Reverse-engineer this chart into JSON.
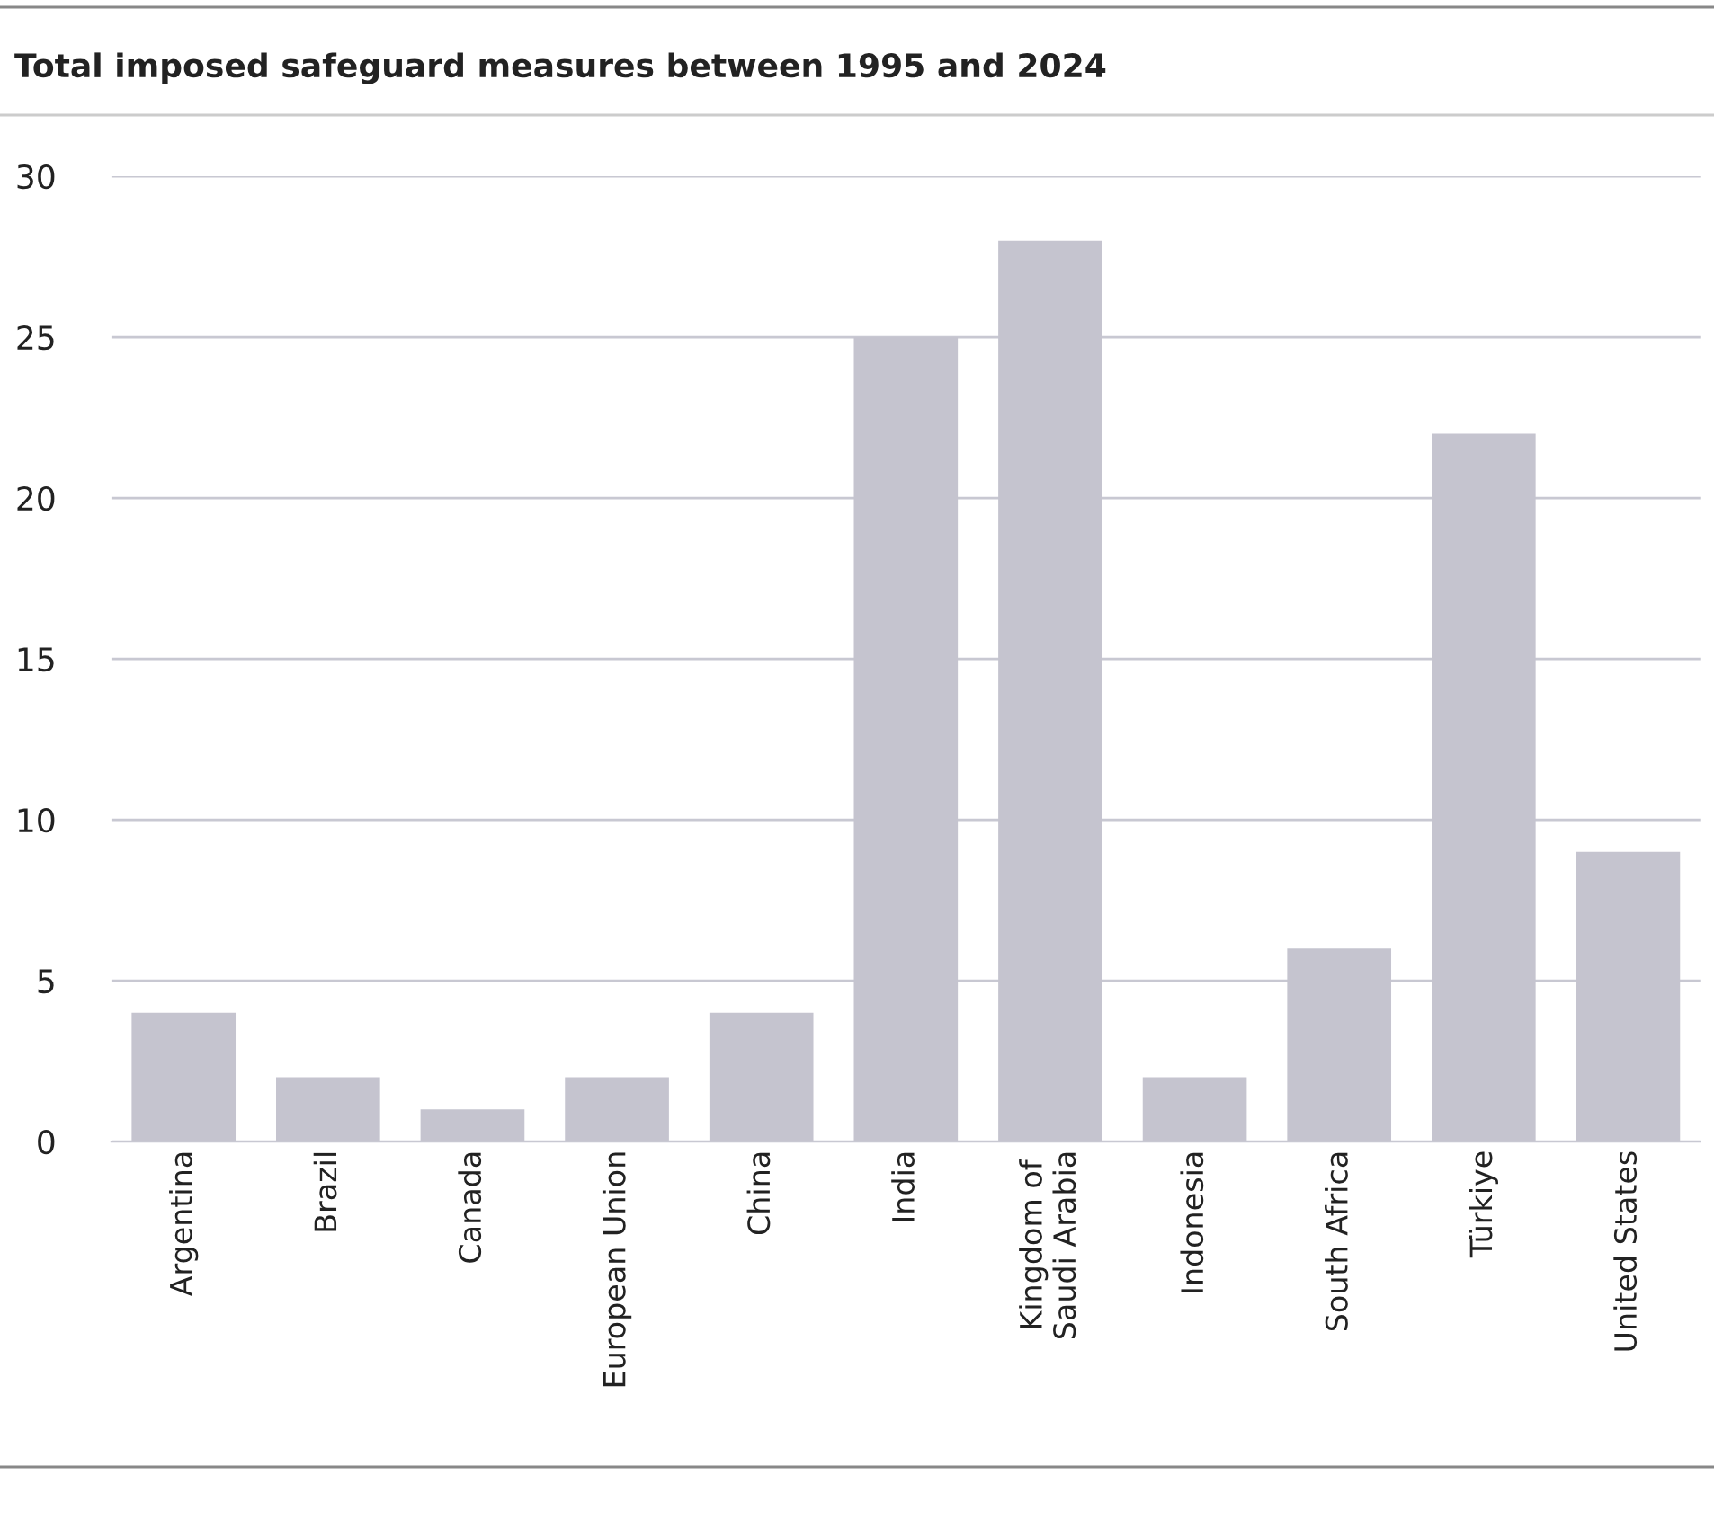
{
  "chart_data": {
    "type": "bar",
    "title": "Total imposed safeguard measures between 1995 and 2024",
    "categories": [
      "Argentina",
      "Brazil",
      "Canada",
      "European Union",
      "China",
      "India",
      "Kingdom of\nSaudi Arabia",
      "Indonesia",
      "South Africa",
      "Türkiye",
      "United States"
    ],
    "values": [
      4,
      2,
      1,
      2,
      4,
      25,
      28,
      2,
      6,
      22,
      9
    ],
    "color": "#c5c4cf",
    "ylim": [
      0,
      30
    ],
    "yticks": [
      0,
      5,
      10,
      15,
      20,
      25,
      30
    ],
    "grid": "y"
  }
}
